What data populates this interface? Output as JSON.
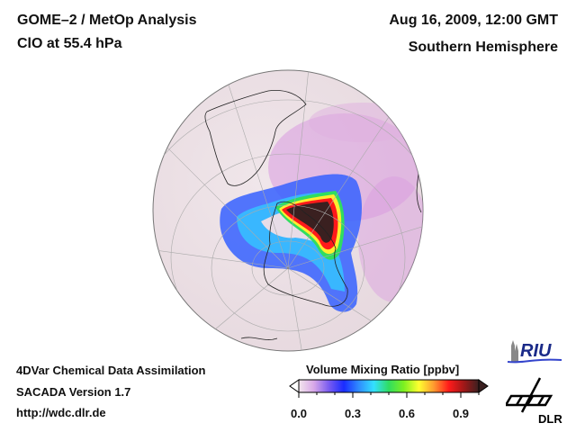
{
  "header": {
    "title_line1": "GOME–2 / MetOp Analysis",
    "title_line2": "ClO at 55.4 hPa",
    "date": "Aug 16, 2009, 12:00 GMT",
    "region": "Southern Hemisphere"
  },
  "footer": {
    "line1": "4DVar Chemical Data Assimilation",
    "line2": "SACADA Version 1.7",
    "line3": "http://wdc.dlr.de"
  },
  "colorbar": {
    "title": "Volume Mixing Ratio [ppbv]",
    "ticks": [
      "0.0",
      "0.3",
      "0.6",
      "0.9"
    ],
    "range": [
      0.0,
      1.0
    ],
    "colors": [
      "#f3e6ec",
      "#d8a8e8",
      "#7a5cf0",
      "#1a2cff",
      "#2f8cff",
      "#33e0ff",
      "#30dd60",
      "#7df020",
      "#ffff30",
      "#ff9a30",
      "#ff1a1a",
      "#a01818",
      "#3a2020"
    ]
  },
  "logos": {
    "riu": "RIU",
    "dlr": "DLR"
  },
  "map": {
    "projection": "orthographic-south-polar",
    "variable": "ClO",
    "units": "ppbv"
  }
}
